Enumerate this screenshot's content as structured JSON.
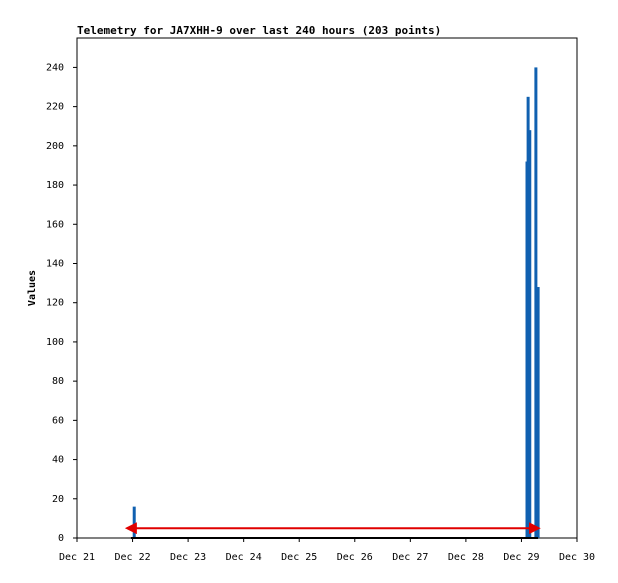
{
  "chart_data": {
    "type": "bar",
    "title": "Telemetry for JA7XHH-9 over last 240 hours (203 points)",
    "y_label": "Values",
    "xlim": [
      0,
      9
    ],
    "xticks": [
      {
        "value": 0,
        "label": "Dec 21"
      },
      {
        "value": 1,
        "label": "Dec 22"
      },
      {
        "value": 2,
        "label": "Dec 23"
      },
      {
        "value": 3,
        "label": "Dec 24"
      },
      {
        "value": 4,
        "label": "Dec 25"
      },
      {
        "value": 5,
        "label": "Dec 26"
      },
      {
        "value": 6,
        "label": "Dec 27"
      },
      {
        "value": 7,
        "label": "Dec 28"
      },
      {
        "value": 8,
        "label": "Dec 29"
      },
      {
        "value": 9,
        "label": "Dec 30"
      }
    ],
    "ylim": [
      0,
      255
    ],
    "yticks": [
      0,
      20,
      40,
      60,
      80,
      100,
      120,
      140,
      160,
      180,
      200,
      220,
      240
    ],
    "series": [
      {
        "type": "bar",
        "color": "#1060b0",
        "x": [
          1.03,
          8.1,
          8.12,
          8.15,
          8.26,
          8.3
        ],
        "values": [
          16,
          192,
          225,
          208,
          240,
          128
        ]
      },
      {
        "type": "line",
        "color": "#000000",
        "x": [
          0.97,
          8.3
        ],
        "values": [
          0,
          0
        ]
      },
      {
        "type": "line",
        "color": "#e00000",
        "x": [
          0.97,
          8.24
        ],
        "values": [
          5,
          5
        ]
      }
    ]
  }
}
